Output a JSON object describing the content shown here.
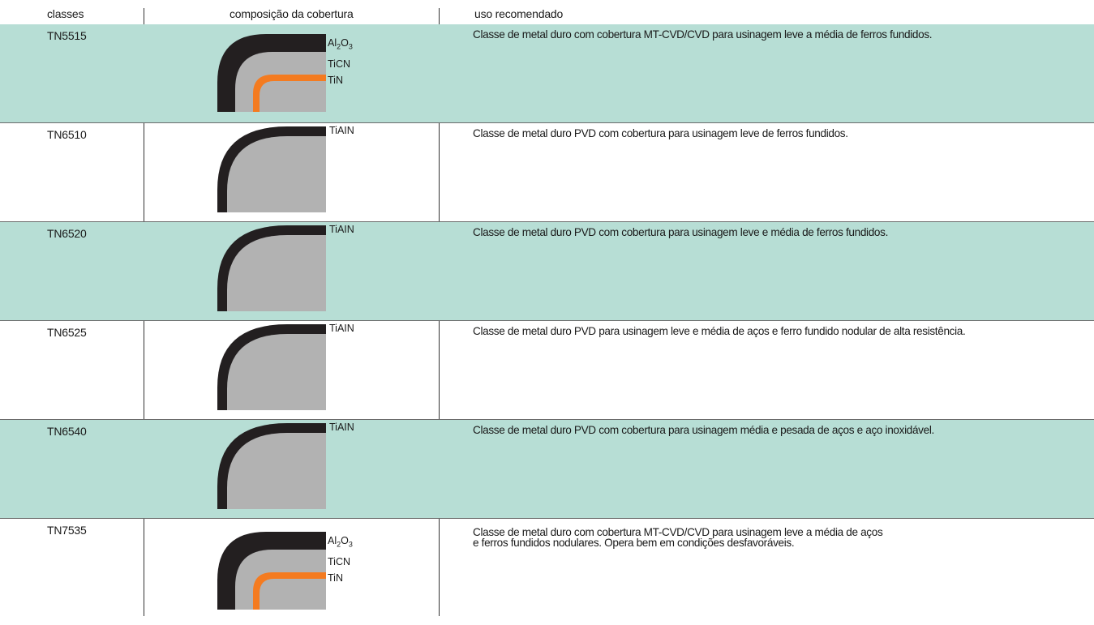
{
  "header": {
    "classes": "classes",
    "composition": "composição da cobertura",
    "use": "uso recomendado"
  },
  "rows": [
    {
      "class": "TN5515",
      "layers": "Al2O3-TiCN-TiN",
      "use": "Classe de metal duro com cobertura MT-CVD/CVD para usinagem leve a média de ferros fundidos.",
      "labels": [
        "Al",
        "2",
        "O",
        "3",
        "TiCN",
        "TiN"
      ]
    },
    {
      "class": "TN6510",
      "layers": "TiAIN",
      "use": "Classe de metal duro PVD com cobertura para usinagem leve de ferros fundidos.",
      "labels": [
        "TiAIN"
      ]
    },
    {
      "class": "TN6520",
      "layers": "TiAIN",
      "use": "Classe de metal duro PVD com cobertura para usinagem leve e média de ferros fundidos.",
      "labels": [
        "TiAIN"
      ]
    },
    {
      "class": "TN6525",
      "layers": "TiAIN",
      "use": "Classe de metal duro PVD para usinagem leve e média de aços e ferro fundido nodular de alta resistência.",
      "labels": [
        "TiAIN"
      ]
    },
    {
      "class": "TN6540",
      "layers": "TiAIN",
      "use": "Classe de metal duro PVD com cobertura para usinagem média e pesada de aços e aço inoxidável.",
      "labels": [
        "TiAIN"
      ]
    },
    {
      "class": "TN7535",
      "layers": "Al2O3-TiCN-TiN",
      "use": "Classe de metal duro com cobertura MT-CVD/CVD para usinagem leve a média de aços\ne ferros fundidos nodulares. Opera bem em condições desfavoráveis.",
      "labels": [
        "Al",
        "2",
        "O",
        "3",
        "TiCN",
        "TiN"
      ]
    }
  ],
  "colors": {
    "shade": "#b7ded5",
    "coating_black": "#231f20",
    "substrate_gray": "#b2b2b2",
    "tin_orange": "#f47b20"
  }
}
